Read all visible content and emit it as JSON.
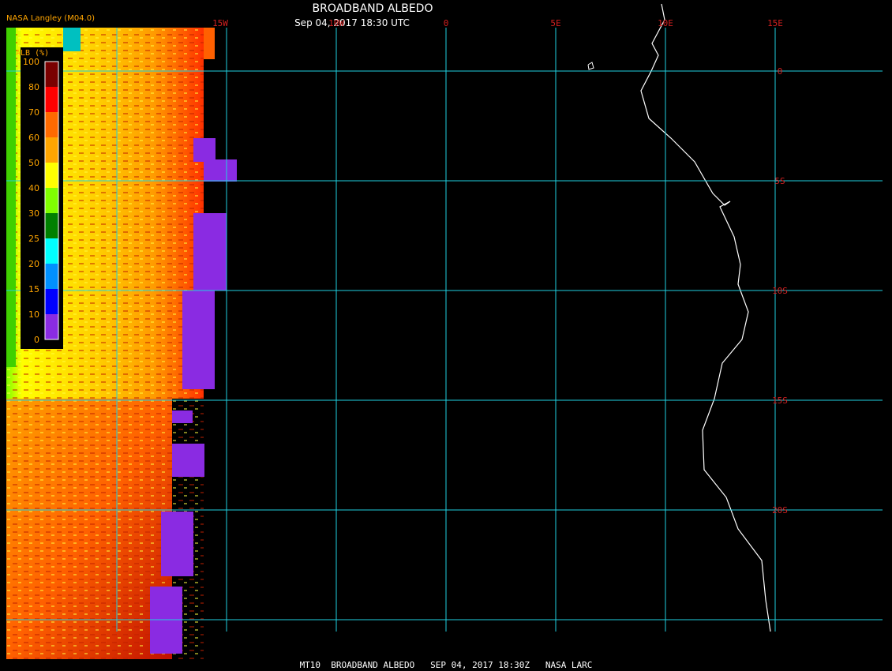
{
  "header": {
    "title": "BROADBAND ALBEDO",
    "subtitle": "Sep 04, 2017 18:30 UTC",
    "credit": "NASA Langley (M04.0)"
  },
  "legend": {
    "label": "ALB (%)",
    "ticks": [
      "100",
      "80",
      "70",
      "60",
      "50",
      "40",
      "30",
      "25",
      "20",
      "15",
      "10",
      "0"
    ],
    "colors": [
      "#7a0000",
      "#ff0000",
      "#ff6a00",
      "#ffa500",
      "#ffff00",
      "#80ff00",
      "#008000",
      "#00ffff",
      "#0090ff",
      "#0000ff",
      "#8a2be2"
    ]
  },
  "longitudes": [
    "15W",
    "10W",
    "0",
    "5E",
    "10E",
    "15E"
  ],
  "latitudes": [
    "0",
    "5S",
    "10S",
    "15S",
    "20S"
  ],
  "footer": "MT10  BROADBAND ALBEDO   SEP 04, 2017 18:30Z   NASA LARC"
}
